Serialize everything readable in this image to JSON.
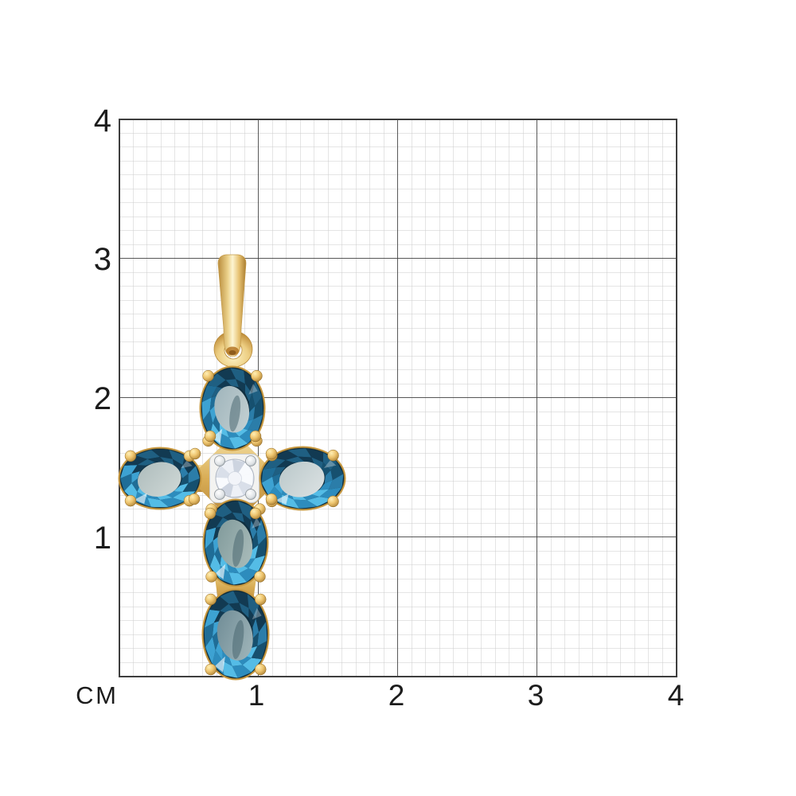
{
  "ruler": {
    "unit_label": "СМ",
    "y_ticks": [
      "4",
      "3",
      "2",
      "1"
    ],
    "x_ticks": [
      "1",
      "2",
      "3",
      "4"
    ]
  },
  "product": {
    "alt": "Gold cross pendant with five oval blue topaz gemstones and a round white stone in the center, shown on a centimeter measurement grid",
    "colors": {
      "gold": "#e0ba62",
      "gold_dark": "#b8883a",
      "gem_blue": "#2d8cbd",
      "gem_blue_dark": "#123a52",
      "gem_table": "#b7c7c9",
      "center_stone": "#f2f4f9",
      "grid_minor": "#cccccc",
      "grid_major": "#3e3e3e",
      "label_text": "#1c1c1c"
    }
  }
}
